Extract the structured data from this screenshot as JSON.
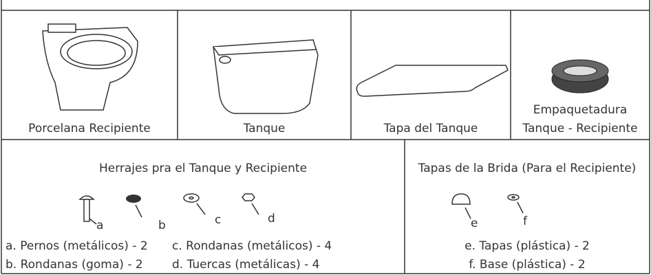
{
  "top_parts": [
    {
      "label": [
        "Porcelana Recipiente"
      ]
    },
    {
      "label": [
        "Tanque"
      ]
    },
    {
      "label": [
        "Tapa del Tanque"
      ]
    },
    {
      "label": [
        "Empaquetadura",
        "Tanque - Recipiente"
      ]
    }
  ],
  "hardware": [
    {
      "title": "Herrajes pra el Tanque y Recipiente",
      "letters": [
        "a",
        "b",
        "c",
        "d"
      ],
      "items": [
        "a. Pernos (metálicos) - 2",
        "c. Rondanas (metálicos) - 4",
        "b. Rondanas (goma) - 2",
        "d. Tuercas (metálicas) - 4"
      ]
    },
    {
      "title": "Tapas de la Brida (Para el Recipiente)",
      "letters": [
        "e",
        "f"
      ],
      "items": [
        "e. Tapas (plástica) - 2",
        "f. Base (plástica) - 2"
      ]
    }
  ]
}
